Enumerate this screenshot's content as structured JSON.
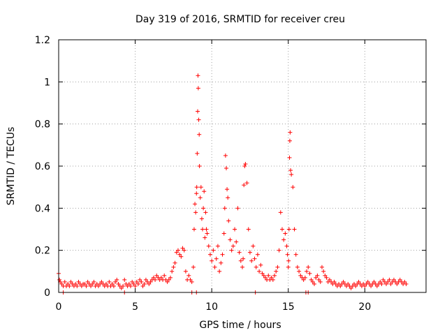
{
  "chart_data": {
    "type": "scatter",
    "title": "Day 319 of 2016, SRMTID for receiver creu",
    "xlabel": "GPS time / hours",
    "ylabel": "SRMTID / TECUs",
    "xlim": [
      0,
      24
    ],
    "ylim": [
      0,
      1.2
    ],
    "xticks": [
      0,
      5,
      10,
      15,
      20
    ],
    "xtick_labels": [
      "0",
      "5",
      "10",
      "15",
      "20"
    ],
    "yticks": [
      0,
      0.2,
      0.4,
      0.6,
      0.8,
      1.0,
      1.2
    ],
    "ytick_labels": [
      "0",
      "0.2",
      "0.4",
      "0.6",
      "0.8",
      "1",
      "1.2"
    ],
    "grid": true,
    "legend": "none",
    "marker": "+",
    "color": "#ff0000",
    "series": [
      {
        "x": [
          0.0,
          0.05,
          0.1,
          0.2,
          0.3,
          0.4,
          0.5,
          0.6,
          0.7,
          0.8,
          0.9,
          1.0,
          1.1,
          1.2,
          1.3,
          1.4,
          1.5,
          1.6,
          1.7,
          1.8,
          1.9,
          2.0,
          2.1,
          2.2,
          2.3,
          2.4,
          2.5,
          2.6,
          2.7,
          2.8,
          2.9,
          3.0,
          3.1,
          3.2,
          3.3,
          3.4,
          3.5,
          3.6,
          3.7,
          3.8,
          3.9,
          4.0,
          4.1,
          4.2,
          4.3,
          4.4,
          4.5,
          4.6,
          4.7,
          4.8,
          4.9,
          5.0,
          5.1,
          5.2,
          5.3,
          5.4,
          5.5,
          5.6,
          5.7,
          5.8,
          5.9,
          6.0,
          6.1,
          6.2,
          6.3,
          6.4,
          6.5,
          6.6,
          6.7,
          6.8,
          6.9,
          7.0,
          7.1,
          7.2,
          7.3,
          7.4,
          7.5,
          7.6,
          7.7,
          7.8,
          7.9,
          8.0,
          8.1,
          8.2,
          8.3,
          8.4,
          8.5,
          8.6,
          8.7,
          8.8,
          8.85,
          8.9,
          8.95,
          9.0,
          9.02,
          9.05,
          9.08,
          9.1,
          9.12,
          9.15,
          9.18,
          9.2,
          9.25,
          9.3,
          9.35,
          9.4,
          9.45,
          9.5,
          9.55,
          9.6,
          9.65,
          9.7,
          9.8,
          9.9,
          10.0,
          10.1,
          10.2,
          10.3,
          10.4,
          10.5,
          10.6,
          10.7,
          10.8,
          10.85,
          10.9,
          10.95,
          11.0,
          11.05,
          11.1,
          11.2,
          11.3,
          11.4,
          11.5,
          11.6,
          11.7,
          11.8,
          11.9,
          12.0,
          12.05,
          12.1,
          12.15,
          12.2,
          12.3,
          12.4,
          12.5,
          12.6,
          12.7,
          12.8,
          12.9,
          13.0,
          13.1,
          13.2,
          13.3,
          13.4,
          13.5,
          13.6,
          13.7,
          13.8,
          13.9,
          14.0,
          14.1,
          14.2,
          14.3,
          14.4,
          14.5,
          14.6,
          14.7,
          14.8,
          14.9,
          14.95,
          15.0,
          15.02,
          15.05,
          15.08,
          15.1,
          15.12,
          15.15,
          15.2,
          15.3,
          15.4,
          15.5,
          15.6,
          15.7,
          15.8,
          15.9,
          16.0,
          16.1,
          16.2,
          16.3,
          16.4,
          16.5,
          16.6,
          16.7,
          16.8,
          16.9,
          17.0,
          17.1,
          17.2,
          17.3,
          17.4,
          17.5,
          17.6,
          17.7,
          17.8,
          17.9,
          18.0,
          18.1,
          18.2,
          18.3,
          18.4,
          18.5,
          18.6,
          18.7,
          18.8,
          18.9,
          19.0,
          19.1,
          19.2,
          19.3,
          19.4,
          19.5,
          19.6,
          19.7,
          19.8,
          19.9,
          20.0,
          20.1,
          20.2,
          20.3,
          20.4,
          20.5,
          20.6,
          20.7,
          20.8,
          20.9,
          21.0,
          21.1,
          21.2,
          21.3,
          21.4,
          21.5,
          21.6,
          21.7,
          21.8,
          21.9,
          22.0,
          22.1,
          22.2,
          22.3,
          22.4,
          22.5,
          22.6,
          22.7,
          0.3,
          4.3,
          8.7,
          9.0,
          12.85,
          16.15,
          16.3
        ],
        "y": [
          0.09,
          0.06,
          0.05,
          0.04,
          0.03,
          0.05,
          0.03,
          0.04,
          0.03,
          0.05,
          0.04,
          0.03,
          0.04,
          0.03,
          0.05,
          0.04,
          0.03,
          0.04,
          0.04,
          0.03,
          0.05,
          0.04,
          0.03,
          0.04,
          0.05,
          0.03,
          0.04,
          0.03,
          0.04,
          0.05,
          0.04,
          0.03,
          0.04,
          0.03,
          0.05,
          0.03,
          0.04,
          0.03,
          0.05,
          0.06,
          0.04,
          0.03,
          0.02,
          0.03,
          0.06,
          0.04,
          0.03,
          0.04,
          0.03,
          0.05,
          0.04,
          0.03,
          0.05,
          0.04,
          0.06,
          0.05,
          0.03,
          0.04,
          0.06,
          0.05,
          0.04,
          0.05,
          0.06,
          0.07,
          0.06,
          0.08,
          0.07,
          0.06,
          0.07,
          0.06,
          0.08,
          0.06,
          0.05,
          0.06,
          0.07,
          0.1,
          0.12,
          0.14,
          0.19,
          0.2,
          0.18,
          0.17,
          0.21,
          0.2,
          0.1,
          0.06,
          0.08,
          0.06,
          0.05,
          0.12,
          0.3,
          0.42,
          0.38,
          0.47,
          0.5,
          0.66,
          0.86,
          1.03,
          0.97,
          0.82,
          0.75,
          0.6,
          0.45,
          0.5,
          0.35,
          0.3,
          0.4,
          0.48,
          0.26,
          0.38,
          0.3,
          0.28,
          0.22,
          0.18,
          0.15,
          0.2,
          0.12,
          0.16,
          0.22,
          0.1,
          0.14,
          0.18,
          0.28,
          0.4,
          0.65,
          0.59,
          0.49,
          0.45,
          0.34,
          0.25,
          0.2,
          0.22,
          0.3,
          0.24,
          0.4,
          0.19,
          0.15,
          0.12,
          0.16,
          0.51,
          0.6,
          0.61,
          0.52,
          0.3,
          0.19,
          0.15,
          0.22,
          0.16,
          0.12,
          0.18,
          0.1,
          0.13,
          0.09,
          0.08,
          0.07,
          0.06,
          0.08,
          0.06,
          0.07,
          0.06,
          0.08,
          0.1,
          0.12,
          0.2,
          0.38,
          0.3,
          0.25,
          0.28,
          0.22,
          0.18,
          0.12,
          0.15,
          0.3,
          0.64,
          0.72,
          0.76,
          0.58,
          0.56,
          0.5,
          0.3,
          0.18,
          0.12,
          0.1,
          0.08,
          0.07,
          0.06,
          0.07,
          0.1,
          0.12,
          0.09,
          0.06,
          0.05,
          0.04,
          0.07,
          0.08,
          0.06,
          0.05,
          0.12,
          0.1,
          0.08,
          0.07,
          0.05,
          0.06,
          0.05,
          0.04,
          0.05,
          0.04,
          0.03,
          0.04,
          0.03,
          0.04,
          0.05,
          0.04,
          0.03,
          0.04,
          0.03,
          0.02,
          0.03,
          0.04,
          0.03,
          0.04,
          0.05,
          0.04,
          0.03,
          0.04,
          0.03,
          0.04,
          0.05,
          0.04,
          0.03,
          0.04,
          0.05,
          0.04,
          0.03,
          0.04,
          0.05,
          0.04,
          0.06,
          0.05,
          0.04,
          0.05,
          0.06,
          0.04,
          0.05,
          0.06,
          0.05,
          0.04,
          0.05,
          0.06,
          0.05,
          0.04,
          0.05,
          0.04,
          0,
          0,
          0,
          0,
          0,
          0,
          0
        ]
      }
    ]
  }
}
